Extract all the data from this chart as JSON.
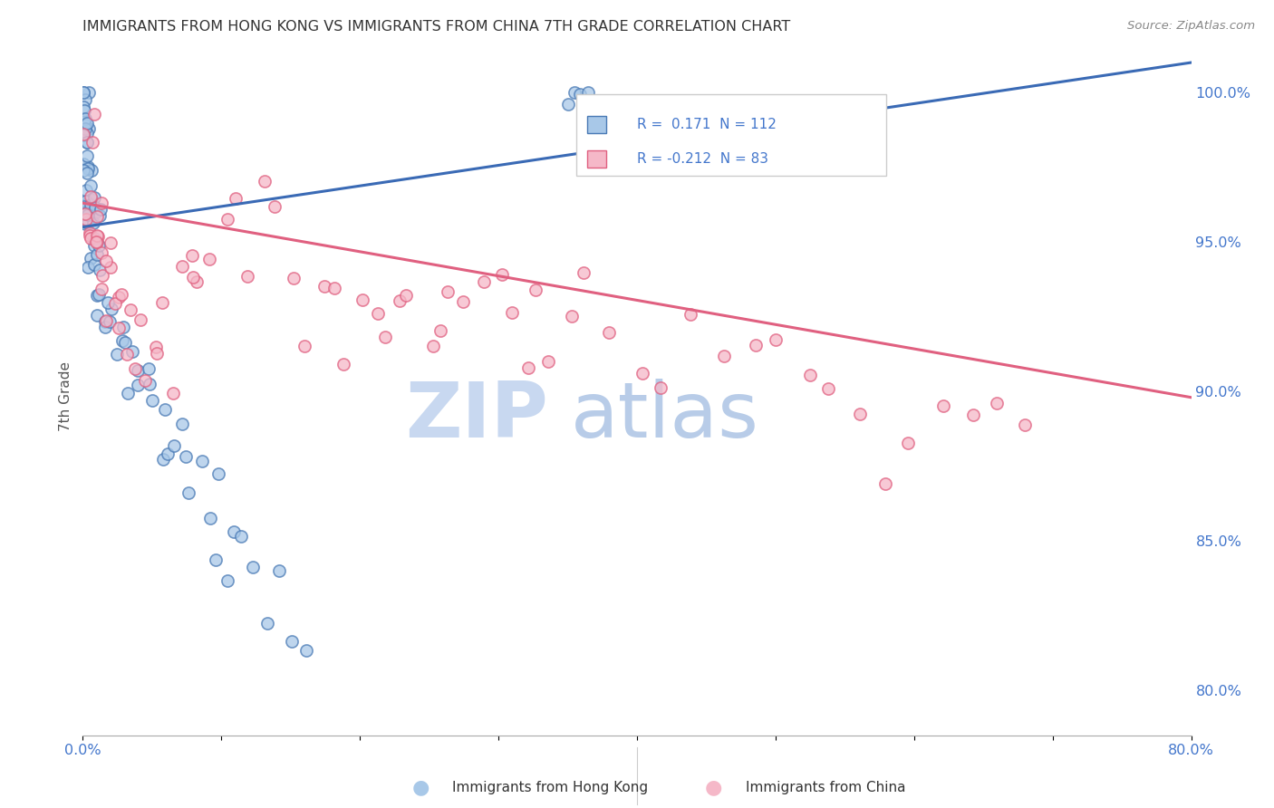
{
  "title": "IMMIGRANTS FROM HONG KONG VS IMMIGRANTS FROM CHINA 7TH GRADE CORRELATION CHART",
  "source": "Source: ZipAtlas.com",
  "ylabel": "7th Grade",
  "legend_hk_label": "Immigrants from Hong Kong",
  "legend_china_label": "Immigrants from China",
  "hk_R": 0.171,
  "hk_N": 112,
  "china_R": -0.212,
  "china_N": 83,
  "x_min": 0.0,
  "x_max": 0.8,
  "y_min": 0.785,
  "y_max": 1.012,
  "right_yticks": [
    0.8,
    0.85,
    0.9,
    0.95,
    1.0
  ],
  "right_ytick_labels": [
    "80.0%",
    "85.0%",
    "90.0%",
    "95.0%",
    "100.0%"
  ],
  "bottom_xtick_labels": [
    "0.0%",
    "",
    "",
    "",
    "",
    "",
    "",
    "",
    "80.0%"
  ],
  "hk_color": "#a8c8e8",
  "china_color": "#f5b8c8",
  "hk_edge_color": "#4a7ab5",
  "china_edge_color": "#e06080",
  "hk_line_color": "#3a6ab5",
  "china_line_color": "#e06080",
  "watermark_zip_color": "#c8d8f0",
  "watermark_atlas_color": "#b8cce8",
  "background_color": "#ffffff",
  "grid_color": "#cccccc",
  "title_color": "#333333",
  "axis_label_color": "#4477cc",
  "hk_line_x0": 0.0,
  "hk_line_x1": 0.8,
  "hk_line_y0": 0.955,
  "hk_line_y1": 1.01,
  "china_line_x0": 0.0,
  "china_line_x1": 0.8,
  "china_line_y0": 0.963,
  "china_line_y1": 0.898,
  "hk_x": [
    0.001,
    0.001,
    0.001,
    0.001,
    0.001,
    0.001,
    0.001,
    0.002,
    0.002,
    0.002,
    0.002,
    0.002,
    0.002,
    0.002,
    0.002,
    0.002,
    0.002,
    0.003,
    0.003,
    0.003,
    0.003,
    0.003,
    0.003,
    0.003,
    0.004,
    0.004,
    0.004,
    0.004,
    0.004,
    0.004,
    0.004,
    0.004,
    0.005,
    0.005,
    0.005,
    0.005,
    0.005,
    0.005,
    0.006,
    0.006,
    0.006,
    0.006,
    0.007,
    0.007,
    0.007,
    0.007,
    0.008,
    0.008,
    0.008,
    0.009,
    0.009,
    0.01,
    0.01,
    0.011,
    0.012,
    0.013,
    0.013,
    0.015,
    0.016,
    0.018,
    0.02,
    0.022,
    0.025,
    0.025,
    0.03,
    0.032,
    0.035,
    0.038,
    0.04,
    0.042,
    0.045,
    0.048,
    0.05,
    0.055,
    0.058,
    0.06,
    0.065,
    0.07,
    0.075,
    0.08,
    0.085,
    0.09,
    0.095,
    0.1,
    0.105,
    0.11,
    0.115,
    0.12,
    0.13,
    0.14,
    0.15,
    0.16,
    0.35,
    0.355,
    0.36,
    0.365,
    0.38,
    0.385,
    0.39,
    0.395,
    0.4,
    0.405,
    0.41,
    0.415,
    0.42,
    0.425,
    0.43,
    0.435,
    0.44,
    0.445,
    0.45,
    0.455
  ],
  "hk_y": [
    0.999,
    0.998,
    0.997,
    0.996,
    0.995,
    0.994,
    0.993,
    0.992,
    0.991,
    0.99,
    0.989,
    0.988,
    0.987,
    0.985,
    0.984,
    0.983,
    0.982,
    0.981,
    0.98,
    0.979,
    0.978,
    0.977,
    0.976,
    0.975,
    0.974,
    0.973,
    0.972,
    0.971,
    0.97,
    0.969,
    0.968,
    0.967,
    0.966,
    0.965,
    0.964,
    0.963,
    0.962,
    0.961,
    0.96,
    0.959,
    0.958,
    0.957,
    0.956,
    0.955,
    0.954,
    0.953,
    0.952,
    0.951,
    0.95,
    0.948,
    0.946,
    0.944,
    0.942,
    0.94,
    0.938,
    0.936,
    0.934,
    0.93,
    0.928,
    0.926,
    0.924,
    0.922,
    0.92,
    0.918,
    0.914,
    0.912,
    0.91,
    0.908,
    0.906,
    0.904,
    0.9,
    0.898,
    0.896,
    0.892,
    0.89,
    0.888,
    0.884,
    0.88,
    0.876,
    0.872,
    0.868,
    0.864,
    0.86,
    0.856,
    0.852,
    0.848,
    0.844,
    0.84,
    0.836,
    0.832,
    0.828,
    0.824,
    0.999,
    0.998,
    0.997,
    0.996,
    0.994,
    0.993,
    0.992,
    0.991,
    0.99,
    0.989,
    0.988,
    0.987,
    0.986,
    0.985,
    0.984,
    0.983,
    0.982,
    0.981,
    0.98,
    0.979
  ],
  "china_x": [
    0.001,
    0.002,
    0.003,
    0.004,
    0.005,
    0.005,
    0.006,
    0.007,
    0.008,
    0.008,
    0.009,
    0.01,
    0.01,
    0.011,
    0.012,
    0.013,
    0.014,
    0.015,
    0.016,
    0.017,
    0.018,
    0.02,
    0.022,
    0.025,
    0.028,
    0.03,
    0.032,
    0.035,
    0.038,
    0.04,
    0.045,
    0.05,
    0.055,
    0.06,
    0.065,
    0.07,
    0.075,
    0.08,
    0.085,
    0.09,
    0.1,
    0.11,
    0.12,
    0.13,
    0.14,
    0.15,
    0.16,
    0.17,
    0.18,
    0.19,
    0.2,
    0.21,
    0.22,
    0.23,
    0.24,
    0.25,
    0.26,
    0.27,
    0.28,
    0.29,
    0.3,
    0.31,
    0.32,
    0.33,
    0.34,
    0.35,
    0.36,
    0.38,
    0.4,
    0.42,
    0.44,
    0.46,
    0.48,
    0.5,
    0.52,
    0.54,
    0.56,
    0.58,
    0.6,
    0.62,
    0.64,
    0.66,
    0.68
  ],
  "china_y": [
    0.972,
    0.97,
    0.968,
    0.966,
    0.964,
    0.97,
    0.962,
    0.96,
    0.958,
    0.964,
    0.956,
    0.954,
    0.96,
    0.952,
    0.95,
    0.948,
    0.946,
    0.944,
    0.942,
    0.94,
    0.938,
    0.936,
    0.934,
    0.932,
    0.93,
    0.928,
    0.926,
    0.924,
    0.922,
    0.92,
    0.918,
    0.916,
    0.914,
    0.912,
    0.91,
    0.956,
    0.952,
    0.948,
    0.944,
    0.94,
    0.95,
    0.948,
    0.946,
    0.944,
    0.942,
    0.94,
    0.938,
    0.936,
    0.934,
    0.932,
    0.93,
    0.928,
    0.926,
    0.924,
    0.922,
    0.92,
    0.918,
    0.94,
    0.938,
    0.936,
    0.934,
    0.932,
    0.93,
    0.928,
    0.926,
    0.924,
    0.922,
    0.92,
    0.918,
    0.916,
    0.914,
    0.912,
    0.91,
    0.908,
    0.906,
    0.904,
    0.902,
    0.9,
    0.898,
    0.896,
    0.894,
    0.892,
    0.89
  ]
}
